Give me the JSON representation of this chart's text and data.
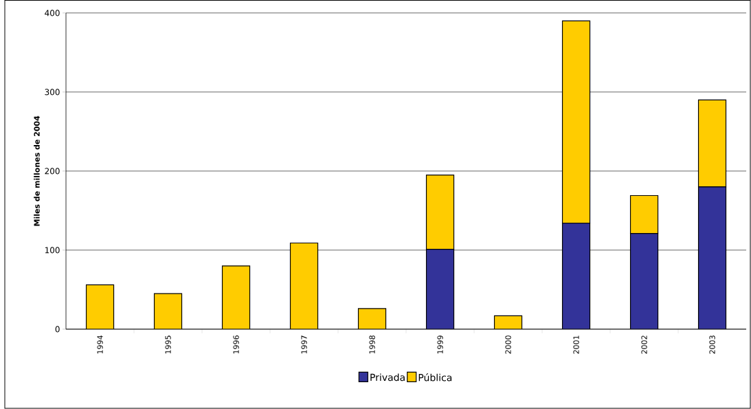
{
  "chart_data": {
    "type": "bar",
    "ylabel": "Miles de millones de 2004",
    "categories": [
      "1994",
      "1995",
      "1996",
      "1997",
      "1998",
      "1999",
      "2000",
      "2001",
      "2002",
      "2003"
    ],
    "stacked": true,
    "series": [
      {
        "name": "Privada",
        "color": "#333399",
        "values": [
          0,
          0,
          0,
          0,
          0,
          101,
          0,
          134,
          121,
          180
        ]
      },
      {
        "name": "Pública",
        "color": "#ffcc00",
        "values": [
          56,
          45,
          80,
          109,
          26,
          94,
          17,
          256,
          48,
          110
        ]
      }
    ],
    "ylim": [
      0,
      400
    ],
    "yticks": [
      0,
      100,
      200,
      300,
      400
    ],
    "grid": "y",
    "legend": "bottom"
  }
}
